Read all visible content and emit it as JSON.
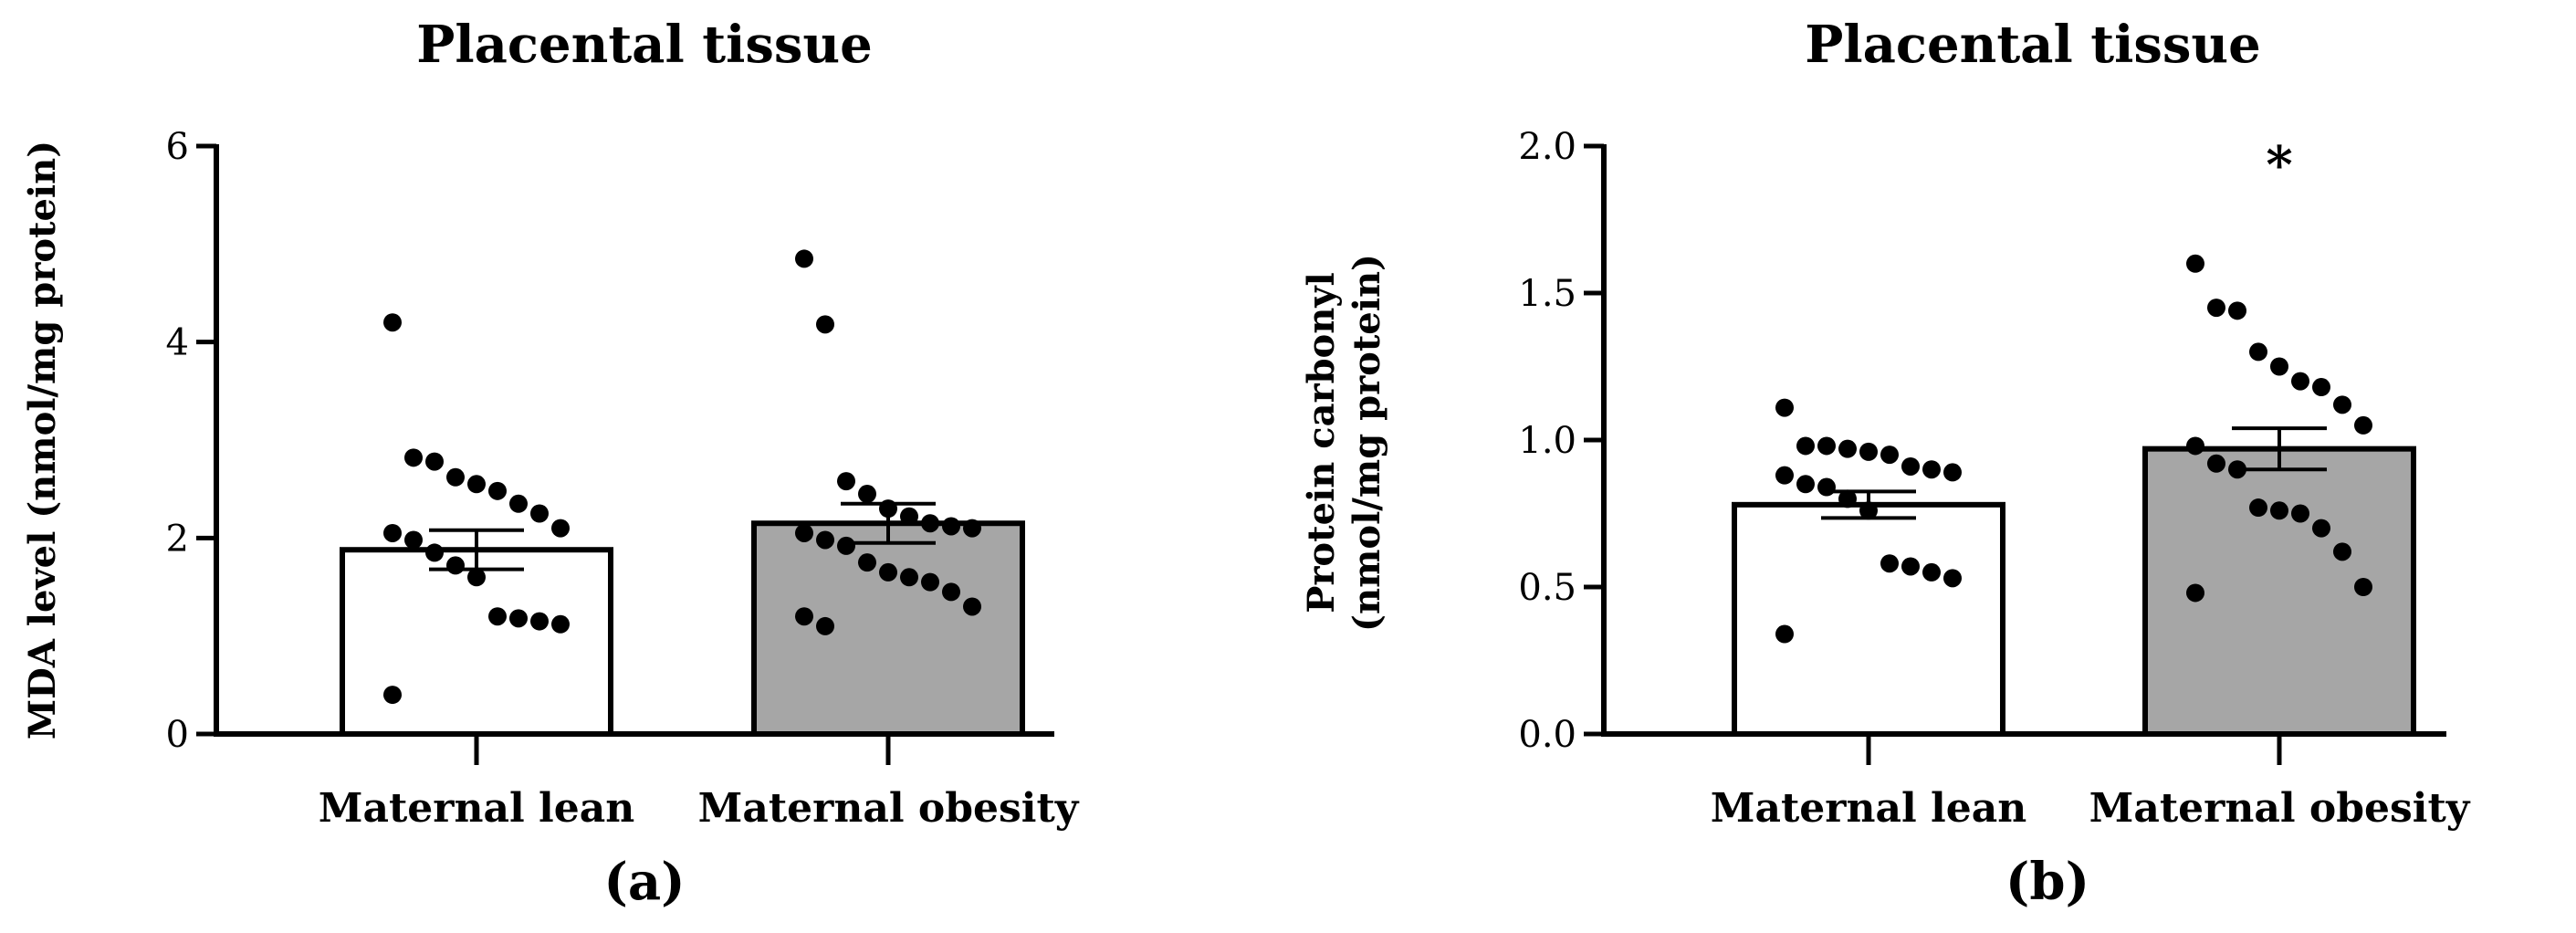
{
  "chart_data": [
    {
      "type": "bar",
      "panel_label": "(a)",
      "title": "Placental tissue",
      "xlabel": "",
      "ylabel": "MDA level (nmol/mg protein)",
      "ylim": [
        0,
        6
      ],
      "yticks": [
        0,
        2,
        4,
        6
      ],
      "ytick_labels": [
        "0",
        "2",
        "4",
        "6"
      ],
      "grid": false,
      "categories": [
        "Maternal lean",
        "Maternal obesity"
      ],
      "values": [
        1.88,
        2.15
      ],
      "sem": [
        0.2,
        0.2
      ],
      "bar_colors": [
        "#ffffff",
        "#a6a6a6"
      ],
      "significance": [
        "",
        ""
      ],
      "points": [
        [
          4.2,
          2.82,
          2.78,
          2.62,
          2.55,
          2.48,
          2.35,
          2.25,
          2.1,
          2.05,
          1.98,
          1.85,
          1.72,
          1.6,
          1.2,
          1.18,
          1.15,
          1.12,
          0.4
        ],
        [
          4.85,
          4.18,
          2.58,
          2.45,
          2.3,
          2.22,
          2.15,
          2.12,
          2.1,
          2.05,
          1.98,
          1.92,
          1.75,
          1.65,
          1.6,
          1.55,
          1.45,
          1.3,
          1.2,
          1.1
        ]
      ]
    },
    {
      "type": "bar",
      "panel_label": "(b)",
      "title": "Placental tissue",
      "xlabel": "",
      "ylabel": "Protein carbonyl\n(nmol/mg protein)",
      "ylim": [
        0,
        2.0
      ],
      "yticks": [
        0,
        0.5,
        1.0,
        1.5,
        2.0
      ],
      "ytick_labels": [
        "0.0",
        "0.5",
        "1.0",
        "1.5",
        "2.0"
      ],
      "grid": false,
      "categories": [
        "Maternal lean",
        "Maternal obesity"
      ],
      "values": [
        0.78,
        0.97
      ],
      "sem": [
        0.045,
        0.07
      ],
      "bar_colors": [
        "#ffffff",
        "#a6a6a6"
      ],
      "significance": [
        "",
        "*"
      ],
      "points": [
        [
          1.11,
          0.98,
          0.98,
          0.97,
          0.96,
          0.95,
          0.91,
          0.9,
          0.89,
          0.88,
          0.85,
          0.84,
          0.8,
          0.76,
          0.58,
          0.57,
          0.55,
          0.53,
          0.34
        ],
        [
          1.6,
          1.45,
          1.44,
          1.3,
          1.25,
          1.2,
          1.18,
          1.12,
          1.05,
          0.98,
          0.92,
          0.9,
          0.77,
          0.76,
          0.75,
          0.7,
          0.62,
          0.5,
          0.48
        ]
      ]
    }
  ]
}
